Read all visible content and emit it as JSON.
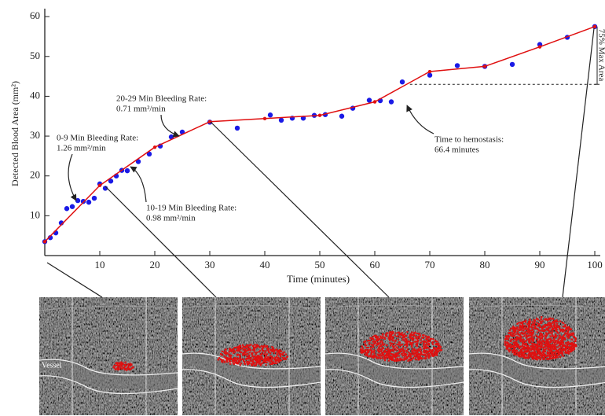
{
  "chart_data": {
    "type": "scatter",
    "y_label": "Detected Blood Area (mm²)",
    "x_label": "Time (minutes)",
    "xlim": [
      0,
      101
    ],
    "ylim": [
      0,
      62
    ],
    "xticks": [
      10,
      20,
      30,
      40,
      50,
      60,
      70,
      80,
      90,
      100
    ],
    "yticks": [
      10,
      20,
      30,
      40,
      50,
      60
    ],
    "points": {
      "color": "#1a1ae6",
      "x": [
        0,
        1,
        2,
        3,
        4,
        5,
        6,
        7,
        8,
        9,
        10,
        11,
        12,
        13,
        14,
        15,
        17,
        19,
        21,
        23,
        25,
        30,
        35,
        41,
        43,
        45,
        47,
        49,
        51,
        54,
        56,
        59,
        61,
        63,
        65,
        70,
        75,
        80,
        85,
        90,
        95,
        100
      ],
      "y": [
        3.5,
        4.5,
        5.7,
        8.2,
        11.8,
        12.3,
        13.8,
        13.6,
        13.4,
        14.4,
        18,
        16.9,
        18.7,
        20,
        21.4,
        21.3,
        23.6,
        25.5,
        27.5,
        29.8,
        31,
        33.5,
        32,
        35.3,
        34,
        34.5,
        34.5,
        35.2,
        35.4,
        35,
        37,
        39,
        38.9,
        38.6,
        43.6,
        45.3,
        47.7,
        47.5,
        48,
        53,
        54.8,
        57.5
      ]
    },
    "fit": {
      "color": "#e01010",
      "x": [
        0,
        10,
        20,
        30,
        40,
        50,
        60,
        70,
        80,
        90,
        100
      ],
      "y": [
        3.5,
        17.6,
        27.2,
        33.6,
        34.4,
        35.2,
        38.6,
        46.2,
        47.5,
        52.4,
        57.5
      ]
    },
    "hemostasis": {
      "x": 66.4,
      "y": 43,
      "max_y": 57.5
    },
    "bracket_label": "75% Max Area",
    "annotations": [
      {
        "lines": [
          "0-9 Min Bleeding Rate:",
          "1.26 mm²/min"
        ]
      },
      {
        "lines": [
          "10-19 Min Bleeding Rate:",
          "0.98 mm²/min"
        ]
      },
      {
        "lines": [
          "20-29 Min Bleeding Rate:",
          "0.71 mm²/min"
        ]
      },
      {
        "lines": [
          "Time to hemostasis:",
          "66.4 minutes"
        ]
      }
    ]
  },
  "panel_label": "Vessel"
}
